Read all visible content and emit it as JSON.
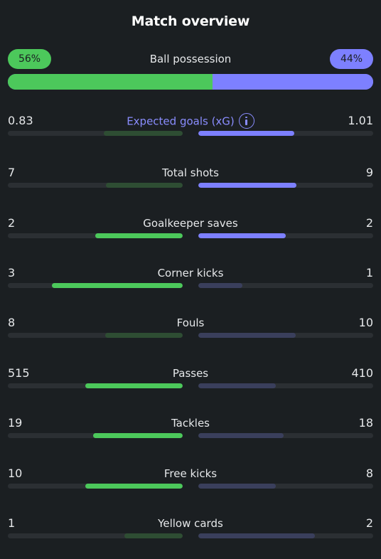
{
  "title": "Match overview",
  "colors": {
    "home_strong": "#4cc85b",
    "home_weak": "#2e4d33",
    "away_strong": "#7d80ff",
    "away_weak": "#3a3f5c"
  },
  "possession": {
    "label": "Ball possession",
    "home": "56%",
    "away": "44%",
    "home_value": 56,
    "away_value": 44
  },
  "stats": [
    {
      "label": "Expected goals (xG)",
      "home": "0.83",
      "away": "1.01",
      "home_num": 0.83,
      "away_num": 1.01,
      "info_icon": "info-icon",
      "accent": true
    },
    {
      "label": "Total shots",
      "home": "7",
      "away": "9",
      "home_num": 7,
      "away_num": 9
    },
    {
      "label": "Goalkeeper saves",
      "home": "2",
      "away": "2",
      "home_num": 2,
      "away_num": 2
    },
    {
      "label": "Corner kicks",
      "home": "3",
      "away": "1",
      "home_num": 3,
      "away_num": 1
    },
    {
      "label": "Fouls",
      "home": "8",
      "away": "10",
      "home_num": 8,
      "away_num": 10
    },
    {
      "label": "Passes",
      "home": "515",
      "away": "410",
      "home_num": 515,
      "away_num": 410
    },
    {
      "label": "Tackles",
      "home": "19",
      "away": "18",
      "home_num": 19,
      "away_num": 18
    },
    {
      "label": "Free kicks",
      "home": "10",
      "away": "8",
      "home_num": 10,
      "away_num": 8
    },
    {
      "label": "Yellow cards",
      "home": "1",
      "away": "2",
      "home_num": 1,
      "away_num": 2
    }
  ]
}
